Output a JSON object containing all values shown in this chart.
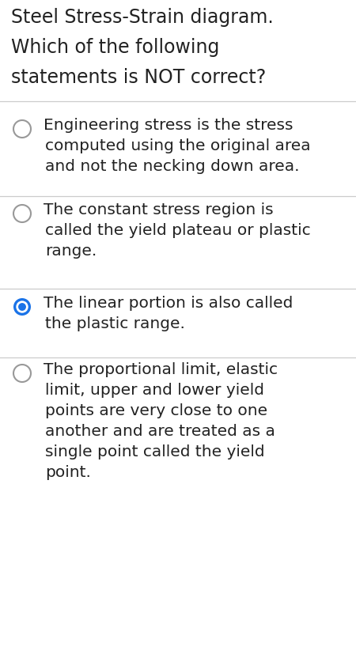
{
  "title_lines": [
    "Steel Stress-Strain diagram.",
    "Which of the following",
    "statements is NOT correct?"
  ],
  "title_fontsize": 17,
  "background_color": "#ffffff",
  "text_color": "#222222",
  "separator_color": "#cccccc",
  "options": [
    {
      "lines": [
        "Engineering stress is the stress",
        "computed using the original area",
        "and not the necking down area."
      ],
      "selected": false
    },
    {
      "lines": [
        "The constant stress region is",
        "called the yield plateau or plastic",
        "range."
      ],
      "selected": false
    },
    {
      "lines": [
        "The linear portion is also called",
        "the plastic range."
      ],
      "selected": true
    },
    {
      "lines": [
        "The proportional limit, elastic",
        "limit, upper and lower yield",
        "points are very close to one",
        "another and are treated as a",
        "single point called the yield",
        "point."
      ],
      "selected": false
    }
  ],
  "radio_selected_color": "#1a73e8",
  "radio_unselected_facecolor": "#ffffff",
  "radio_border_color": "#999999",
  "option_fontsize": 14.5,
  "figsize": [
    4.5,
    8.32
  ],
  "dpi": 100
}
